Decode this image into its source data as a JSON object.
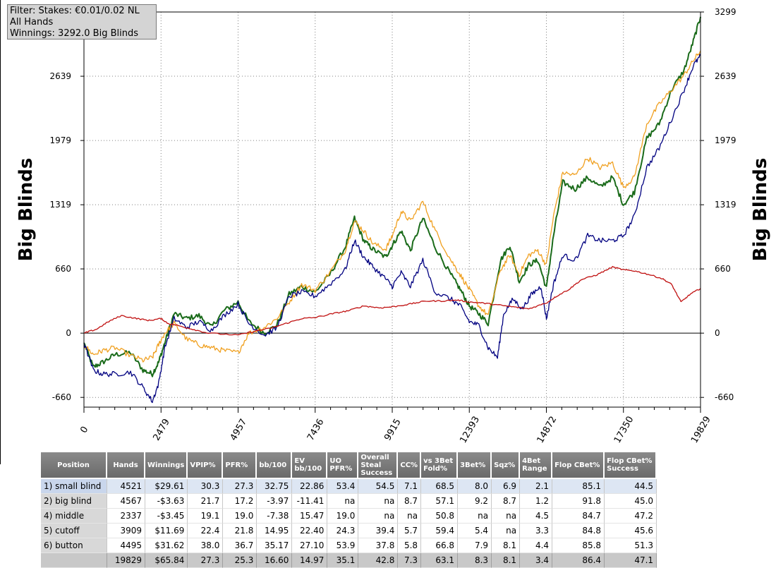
{
  "filter": {
    "line1": "Filter: Stakes: €0.01/0.02 NL",
    "line2": "All Hands",
    "line3": "Winnings: 3292.0 Big Blinds"
  },
  "chart_data": {
    "type": "line",
    "ylabel_left": "Big Blinds",
    "ylabel_right": "Big Blinds",
    "xlim": [
      0,
      19829
    ],
    "ylim": [
      -760,
      3299
    ],
    "y_ticks": [
      -660,
      0,
      660,
      1319,
      1979,
      2639,
      3299
    ],
    "x_ticks": [
      0,
      2479,
      4957,
      7436,
      9915,
      12393,
      14872,
      17350,
      19829
    ],
    "grid": true,
    "legend": "none",
    "series": [
      {
        "color": "#1a6b1a",
        "x": [
          0,
          300,
          600,
          1000,
          1500,
          1900,
          2200,
          2400,
          2600,
          2900,
          3300,
          3700,
          4100,
          4500,
          4957,
          5300,
          5800,
          6200,
          6600,
          7000,
          7436,
          7900,
          8400,
          8700,
          9000,
          9300,
          9700,
          9915,
          10200,
          10500,
          10900,
          11300,
          11800,
          12100,
          12393,
          12700,
          13000,
          13400,
          13700,
          14000,
          14300,
          14600,
          14872,
          15100,
          15400,
          15800,
          16200,
          16600,
          17000,
          17350,
          17700,
          18100,
          18500,
          18900,
          19300,
          19600,
          19829
        ],
        "y": [
          -100,
          -350,
          -300,
          -220,
          -200,
          -380,
          -420,
          -300,
          -100,
          200,
          150,
          180,
          60,
          230,
          320,
          120,
          0,
          80,
          400,
          480,
          420,
          600,
          880,
          1180,
          950,
          860,
          780,
          900,
          1050,
          850,
          1180,
          880,
          600,
          450,
          280,
          200,
          100,
          750,
          900,
          530,
          700,
          750,
          460,
          1000,
          1550,
          1480,
          1600,
          1500,
          1600,
          1320,
          1450,
          2000,
          2150,
          2500,
          2700,
          3000,
          3250
        ]
      },
      {
        "color": "#f0a020",
        "x": [
          0,
          300,
          600,
          1000,
          1500,
          1900,
          2200,
          2400,
          2600,
          2900,
          3300,
          3700,
          4100,
          4500,
          4957,
          5300,
          5800,
          6200,
          6600,
          7000,
          7436,
          7900,
          8400,
          8700,
          9000,
          9300,
          9700,
          9915,
          10200,
          10500,
          10900,
          11300,
          11800,
          12100,
          12393,
          12700,
          13000,
          13400,
          13700,
          14000,
          14300,
          14600,
          14872,
          15100,
          15400,
          15800,
          16200,
          16600,
          17000,
          17350,
          17700,
          18100,
          18500,
          18900,
          19300,
          19600,
          19829
        ],
        "y": [
          -120,
          -220,
          -180,
          -150,
          -230,
          -280,
          -250,
          -120,
          0,
          100,
          -60,
          -120,
          -150,
          -180,
          -200,
          0,
          60,
          150,
          320,
          500,
          440,
          620,
          850,
          1150,
          1050,
          920,
          860,
          1000,
          1250,
          1150,
          1350,
          1050,
          750,
          600,
          450,
          280,
          180,
          650,
          800,
          600,
          800,
          850,
          700,
          1200,
          1650,
          1620,
          1800,
          1700,
          1750,
          1500,
          1600,
          2150,
          2350,
          2500,
          2650,
          2800,
          2900
        ]
      },
      {
        "color": "#000080",
        "x": [
          0,
          300,
          600,
          1000,
          1500,
          1900,
          2200,
          2400,
          2600,
          2900,
          3300,
          3700,
          4100,
          4500,
          4957,
          5300,
          5800,
          6200,
          6600,
          7000,
          7436,
          7900,
          8400,
          8700,
          9000,
          9300,
          9700,
          9915,
          10200,
          10500,
          10900,
          11300,
          11800,
          12100,
          12393,
          12700,
          13000,
          13300,
          13500,
          13800,
          14100,
          14400,
          14700,
          14872,
          15100,
          15400,
          15800,
          16200,
          16600,
          17000,
          17350,
          17700,
          18100,
          18500,
          18900,
          19300,
          19600,
          19829
        ],
        "y": [
          -100,
          -380,
          -420,
          -420,
          -400,
          -560,
          -700,
          -520,
          -150,
          150,
          60,
          120,
          30,
          180,
          300,
          100,
          -20,
          50,
          380,
          420,
          380,
          500,
          650,
          950,
          780,
          680,
          560,
          480,
          620,
          480,
          750,
          420,
          350,
          280,
          120,
          80,
          -150,
          -250,
          200,
          350,
          250,
          400,
          480,
          150,
          500,
          800,
          750,
          1000,
          950,
          950,
          1000,
          1200,
          1700,
          1900,
          2200,
          2500,
          2750,
          2850
        ]
      },
      {
        "color": "#c01010",
        "x": [
          0,
          400,
          800,
          1200,
          1700,
          2100,
          2479,
          2700,
          3000,
          3500,
          4000,
          4957,
          5500,
          6000,
          6500,
          7000,
          7436,
          8000,
          8500,
          9000,
          9500,
          9915,
          10500,
          11000,
          11500,
          12000,
          12393,
          12800,
          13300,
          13800,
          14300,
          14872,
          15200,
          15600,
          16000,
          16500,
          17000,
          17350,
          17700,
          18200,
          18600,
          18900,
          19200,
          19500,
          19829
        ],
        "y": [
          0,
          40,
          120,
          180,
          150,
          130,
          150,
          100,
          80,
          40,
          0,
          -20,
          20,
          50,
          100,
          150,
          160,
          200,
          230,
          280,
          260,
          270,
          300,
          330,
          330,
          340,
          320,
          310,
          290,
          270,
          250,
          310,
          380,
          450,
          550,
          600,
          680,
          650,
          640,
          600,
          560,
          500,
          320,
          400,
          460
        ]
      }
    ]
  },
  "table": {
    "headers": [
      "Position",
      "Hands",
      "Winnings",
      "VPIP%",
      "PFR%",
      "bb/100",
      "EV bb/100",
      "UO PFR%",
      "Overall Steal Success",
      "CC%",
      "vs 3Bet Fold%",
      "3Bet%",
      "Sqz%",
      "4Bet Range",
      "Flop CBet%",
      "Flop CBet% Success"
    ],
    "rows": [
      [
        "1) small blind",
        "4521",
        "$29.61",
        "30.3",
        "27.3",
        "32.75",
        "22.86",
        "53.4",
        "54.5",
        "7.1",
        "68.5",
        "8.0",
        "6.9",
        "2.1",
        "85.1",
        "44.5"
      ],
      [
        "2) big blind",
        "4567",
        "-$3.63",
        "21.7",
        "17.2",
        "-3.97",
        "-11.41",
        "na",
        "na",
        "8.7",
        "57.1",
        "9.2",
        "8.7",
        "1.2",
        "91.8",
        "45.0"
      ],
      [
        "4) middle",
        "2337",
        "-$3.45",
        "19.1",
        "19.0",
        "-7.38",
        "15.47",
        "19.0",
        "na",
        "na",
        "50.8",
        "na",
        "na",
        "4.5",
        "84.7",
        "47.2"
      ],
      [
        "5) cutoff",
        "3909",
        "$11.69",
        "22.4",
        "21.8",
        "14.95",
        "22.40",
        "24.3",
        "39.4",
        "5.7",
        "59.4",
        "5.4",
        "na",
        "3.3",
        "84.8",
        "45.6"
      ],
      [
        "6) button",
        "4495",
        "$31.62",
        "38.0",
        "36.7",
        "35.17",
        "27.10",
        "53.9",
        "37.8",
        "5.8",
        "66.8",
        "7.9",
        "8.1",
        "4.4",
        "85.8",
        "51.3"
      ],
      [
        "",
        "19829",
        "$65.84",
        "27.3",
        "25.3",
        "16.60",
        "14.97",
        "35.1",
        "42.8",
        "7.3",
        "63.1",
        "8.3",
        "8.1",
        "3.4",
        "86.4",
        "47.1"
      ]
    ]
  }
}
